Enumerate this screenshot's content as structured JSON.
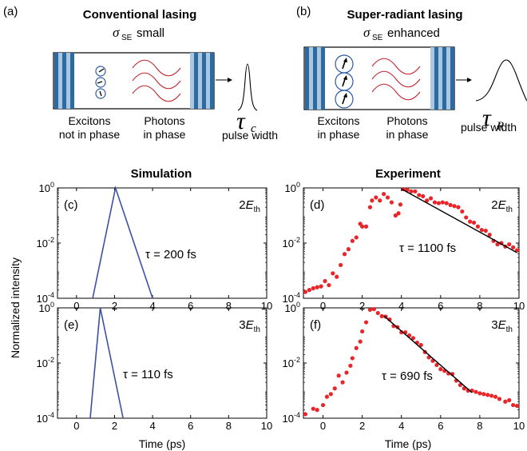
{
  "panel_a": {
    "label": "(a)",
    "title": "Conventional lasing",
    "sigma_symbol": "σ",
    "sigma_sub": "SE",
    "sigma_desc": "small",
    "excitons_line1": "Excitons",
    "excitons_line2": "not in phase",
    "photons_line1": "Photons",
    "photons_line2": "in phase",
    "tau_symbol": "τ",
    "tau_sub": "c",
    "pulse_label": "pulse width"
  },
  "panel_b": {
    "label": "(b)",
    "title": "Super-radiant lasing",
    "sigma_symbol": "σ",
    "sigma_sub": "SE",
    "sigma_desc": "enhanced",
    "excitons_line1": "Excitons",
    "excitons_line2": "in phase",
    "photons_line1": "Photons",
    "photons_line2": "in phase",
    "tau_symbol": "τ",
    "tau_sub": "R",
    "pulse_label": "pulse width"
  },
  "column_titles": {
    "left": "Simulation",
    "right": "Experiment"
  },
  "ylabel": "Normalized intensity",
  "xlabel": "Time (ps)",
  "colors": {
    "sim_line": "#3b52a3",
    "exp_points": "#e8262a",
    "fit_line": "#000000",
    "mirror_dark": "#2d6aa0",
    "mirror_light": "#a9c7e2",
    "wave": "#c0252b",
    "circle": "#2b5aa8"
  },
  "chart_data": [
    {
      "type": "line",
      "panel": "(c)",
      "energy_prefix": "2",
      "energy_symbol": "E",
      "energy_sub": "th",
      "tau_text": "τ = 200 fs",
      "yscale": "log",
      "xlim": [
        -1,
        10
      ],
      "ylim": [
        0.0001,
        1
      ],
      "xticks": [
        "0",
        "2",
        "4",
        "6",
        "8",
        "10"
      ],
      "yticks": [
        {
          "base": "10",
          "exp": "0"
        },
        {
          "base": "10",
          "exp": "-2"
        },
        {
          "base": "10",
          "exp": "-4"
        }
      ],
      "series": [
        {
          "x": [
            0.85,
            2.05,
            4.0
          ],
          "y": [
            0.0001,
            1.0,
            0.0001
          ]
        }
      ]
    },
    {
      "type": "scatter",
      "panel": "(d)",
      "energy_prefix": "2",
      "energy_symbol": "E",
      "energy_sub": "th",
      "tau_text": "τ = 1100 fs",
      "yscale": "log",
      "xlim": [
        -1,
        10
      ],
      "ylim": [
        0.0001,
        1
      ],
      "xticks": [
        "0",
        "2",
        "4",
        "6",
        "8",
        "10"
      ],
      "yticks": [
        {
          "base": "10",
          "exp": "0"
        },
        {
          "base": "10",
          "exp": "-2"
        },
        {
          "base": "10",
          "exp": "-4"
        }
      ],
      "points": [
        [
          -0.9,
          0.00017
        ],
        [
          -0.7,
          0.0002
        ],
        [
          -0.5,
          0.00023
        ],
        [
          -0.3,
          0.00025
        ],
        [
          -0.1,
          0.00027
        ],
        [
          0.1,
          0.00042
        ],
        [
          0.3,
          0.0003
        ],
        [
          0.5,
          0.0008
        ],
        [
          0.7,
          0.0006
        ],
        [
          0.9,
          0.0016
        ],
        [
          1.1,
          0.004
        ],
        [
          1.3,
          0.006
        ],
        [
          1.5,
          0.012
        ],
        [
          1.7,
          0.016
        ],
        [
          1.9,
          0.05
        ],
        [
          2.0,
          0.04
        ],
        [
          2.2,
          0.04
        ],
        [
          2.4,
          0.2
        ],
        [
          2.5,
          0.35
        ],
        [
          2.7,
          0.45
        ],
        [
          2.9,
          0.35
        ],
        [
          3.1,
          0.6
        ],
        [
          3.3,
          0.45
        ],
        [
          3.5,
          0.3
        ],
        [
          3.7,
          0.1
        ],
        [
          3.85,
          0.12
        ],
        [
          3.95,
          0.25
        ],
        [
          4.1,
          0.9
        ],
        [
          4.3,
          0.85
        ],
        [
          4.5,
          0.75
        ],
        [
          4.7,
          0.75
        ],
        [
          4.9,
          0.55
        ],
        [
          5.1,
          0.5
        ],
        [
          5.3,
          0.35
        ],
        [
          5.5,
          0.42
        ],
        [
          5.7,
          0.3
        ],
        [
          5.9,
          0.28
        ],
        [
          6.1,
          0.3
        ],
        [
          6.3,
          0.28
        ],
        [
          6.5,
          0.24
        ],
        [
          6.7,
          0.22
        ],
        [
          6.9,
          0.2
        ],
        [
          7.1,
          0.14
        ],
        [
          7.3,
          0.085
        ],
        [
          7.5,
          0.06
        ],
        [
          7.7,
          0.055
        ],
        [
          7.9,
          0.04
        ],
        [
          8.1,
          0.03
        ],
        [
          8.3,
          0.028
        ],
        [
          8.5,
          0.02
        ],
        [
          8.7,
          0.012
        ],
        [
          8.9,
          0.009
        ],
        [
          9.1,
          0.01
        ],
        [
          9.3,
          0.0075
        ],
        [
          9.5,
          0.009
        ],
        [
          9.7,
          0.007
        ],
        [
          9.9,
          0.0055
        ]
      ],
      "fit": {
        "x": [
          4.0,
          9.9
        ],
        "y": [
          0.92,
          0.0045
        ]
      }
    },
    {
      "type": "line",
      "panel": "(e)",
      "energy_prefix": "3",
      "energy_symbol": "E",
      "energy_sub": "th",
      "tau_text": "τ = 110 fs",
      "yscale": "log",
      "xlim": [
        -1,
        10
      ],
      "ylim": [
        0.0001,
        1
      ],
      "xticks": [
        "0",
        "2",
        "4",
        "6",
        "8",
        "10"
      ],
      "yticks": [
        {
          "base": "10",
          "exp": "0"
        },
        {
          "base": "10",
          "exp": "-2"
        },
        {
          "base": "10",
          "exp": "-4"
        }
      ],
      "series": [
        {
          "x": [
            0.72,
            1.25,
            2.45
          ],
          "y": [
            0.0001,
            1.0,
            0.0001
          ]
        }
      ]
    },
    {
      "type": "scatter",
      "panel": "(f)",
      "energy_prefix": "3",
      "energy_symbol": "E",
      "energy_sub": "th",
      "tau_text": "τ = 690 fs",
      "yscale": "log",
      "xlim": [
        -1,
        10
      ],
      "ylim": [
        0.0001,
        1
      ],
      "xticks": [
        "0",
        "2",
        "4",
        "6",
        "8",
        "10"
      ],
      "yticks": [
        {
          "base": "10",
          "exp": "0"
        },
        {
          "base": "10",
          "exp": "-2"
        },
        {
          "base": "10",
          "exp": "-4"
        }
      ],
      "points": [
        [
          -0.9,
          0.00014
        ],
        [
          -0.5,
          0.00022
        ],
        [
          -0.3,
          0.0002
        ],
        [
          0.0,
          0.0003
        ],
        [
          0.2,
          0.0006
        ],
        [
          0.4,
          0.00075
        ],
        [
          0.6,
          0.0012
        ],
        [
          0.8,
          0.0035
        ],
        [
          1.0,
          0.002
        ],
        [
          1.2,
          0.0045
        ],
        [
          1.4,
          0.008
        ],
        [
          1.5,
          0.015
        ],
        [
          1.7,
          0.035
        ],
        [
          1.9,
          0.06
        ],
        [
          2.0,
          0.14
        ],
        [
          2.2,
          0.3
        ],
        [
          2.4,
          0.85
        ],
        [
          2.6,
          0.9
        ],
        [
          2.8,
          0.65
        ],
        [
          3.0,
          0.5
        ],
        [
          3.2,
          0.48
        ],
        [
          3.4,
          0.38
        ],
        [
          3.6,
          0.22
        ],
        [
          3.8,
          0.2
        ],
        [
          4.0,
          0.13
        ],
        [
          4.2,
          0.13
        ],
        [
          4.4,
          0.1
        ],
        [
          4.6,
          0.08
        ],
        [
          4.8,
          0.055
        ],
        [
          5.0,
          0.045
        ],
        [
          5.2,
          0.025
        ],
        [
          5.4,
          0.016
        ],
        [
          5.6,
          0.012
        ],
        [
          5.8,
          0.0085
        ],
        [
          6.0,
          0.006
        ],
        [
          6.2,
          0.0052
        ],
        [
          6.4,
          0.0042
        ],
        [
          6.6,
          0.004
        ],
        [
          6.8,
          0.0023
        ],
        [
          7.0,
          0.0016
        ],
        [
          7.2,
          0.0012
        ],
        [
          7.4,
          0.001
        ],
        [
          7.6,
          0.001
        ],
        [
          7.8,
          0.0009
        ],
        [
          8.0,
          0.0008
        ],
        [
          8.2,
          0.00075
        ],
        [
          8.4,
          0.0007
        ],
        [
          8.6,
          0.00065
        ],
        [
          8.8,
          0.0006
        ],
        [
          9.0,
          0.0005
        ],
        [
          9.3,
          0.0004
        ],
        [
          9.5,
          0.00045
        ],
        [
          9.7,
          0.0003
        ],
        [
          9.9,
          0.00028
        ]
      ],
      "fit": {
        "x": [
          3.1,
          7.6
        ],
        "y": [
          0.52,
          0.00085
        ]
      }
    }
  ]
}
